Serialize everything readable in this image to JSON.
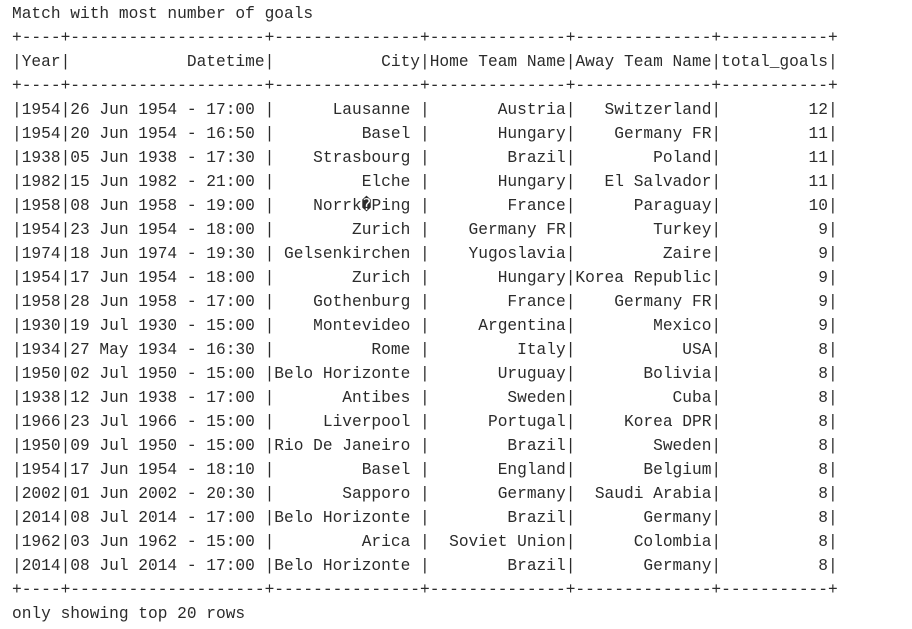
{
  "title": "Match with most number of goals",
  "table": {
    "columns": [
      "Year",
      "Datetime",
      "City",
      "Home Team Name",
      "Away Team Name",
      "total_goals"
    ],
    "rows": [
      [
        "1954",
        "26 Jun 1954 - 17:00 ",
        "Lausanne ",
        "Austria",
        "Switzerland",
        "12"
      ],
      [
        "1954",
        "20 Jun 1954 - 16:50 ",
        "Basel ",
        "Hungary",
        "Germany FR",
        "11"
      ],
      [
        "1938",
        "05 Jun 1938 - 17:30 ",
        "Strasbourg ",
        "Brazil",
        "Poland",
        "11"
      ],
      [
        "1982",
        "15 Jun 1982 - 21:00 ",
        "Elche ",
        "Hungary",
        "El Salvador",
        "11"
      ],
      [
        "1958",
        "08 Jun 1958 - 19:00 ",
        "Norrk�Ping ",
        "France",
        "Paraguay",
        "10"
      ],
      [
        "1954",
        "23 Jun 1954 - 18:00 ",
        "Zurich ",
        "Germany FR",
        "Turkey",
        "9"
      ],
      [
        "1974",
        "18 Jun 1974 - 19:30 ",
        "Gelsenkirchen ",
        "Yugoslavia",
        "Zaire",
        "9"
      ],
      [
        "1954",
        "17 Jun 1954 - 18:00 ",
        "Zurich ",
        "Hungary",
        "Korea Republic",
        "9"
      ],
      [
        "1958",
        "28 Jun 1958 - 17:00 ",
        "Gothenburg ",
        "France",
        "Germany FR",
        "9"
      ],
      [
        "1930",
        "19 Jul 1930 - 15:00 ",
        "Montevideo ",
        "Argentina",
        "Mexico",
        "9"
      ],
      [
        "1934",
        "27 May 1934 - 16:30 ",
        "Rome ",
        "Italy",
        "USA",
        "8"
      ],
      [
        "1950",
        "02 Jul 1950 - 15:00 ",
        "Belo Horizonte ",
        "Uruguay",
        "Bolivia",
        "8"
      ],
      [
        "1938",
        "12 Jun 1938 - 17:00 ",
        "Antibes ",
        "Sweden",
        "Cuba",
        "8"
      ],
      [
        "1966",
        "23 Jul 1966 - 15:00 ",
        "Liverpool ",
        "Portugal",
        "Korea DPR",
        "8"
      ],
      [
        "1950",
        "09 Jul 1950 - 15:00 ",
        "Rio De Janeiro ",
        "Brazil",
        "Sweden",
        "8"
      ],
      [
        "1954",
        "17 Jun 1954 - 18:10 ",
        "Basel ",
        "England",
        "Belgium",
        "8"
      ],
      [
        "2002",
        "01 Jun 2002 - 20:30 ",
        "Sapporo ",
        "Germany",
        "Saudi Arabia",
        "8"
      ],
      [
        "2014",
        "08 Jul 2014 - 17:00 ",
        "Belo Horizonte ",
        "Brazil",
        "Germany",
        "8"
      ],
      [
        "1962",
        "03 Jun 1962 - 15:00 ",
        "Arica ",
        "Soviet Union",
        "Colombia",
        "8"
      ],
      [
        "2014",
        "08 Jul 2014 - 17:00 ",
        "Belo Horizonte ",
        "Brazil",
        "Germany",
        "8"
      ]
    ]
  },
  "footer": "only showing top 20 rows"
}
